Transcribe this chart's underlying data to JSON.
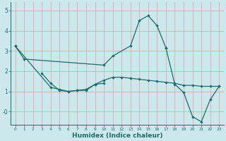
{
  "xlabel": "Humidex (Indice chaleur)",
  "background_color": "#cde8ec",
  "grid_color": "#d9a0a0",
  "line_color": "#1e6b6b",
  "xlim": [
    -0.5,
    23.5
  ],
  "ylim": [
    -0.65,
    5.4
  ],
  "line1_x": [
    0,
    1,
    10,
    11,
    13,
    14,
    15,
    16,
    17
  ],
  "line1_y": [
    3.25,
    2.6,
    2.3,
    2.75,
    3.25,
    4.5,
    4.75,
    4.25,
    3.15
  ],
  "line2_x": [
    3,
    4,
    5,
    6,
    7,
    8,
    9,
    10
  ],
  "line2_y": [
    1.9,
    1.4,
    1.05,
    1.0,
    1.05,
    1.05,
    1.35,
    1.4
  ],
  "line3_x": [
    0,
    4,
    5,
    6,
    7,
    8,
    9,
    10,
    11,
    12,
    13,
    14,
    15,
    16,
    17,
    18,
    19,
    20,
    21,
    22,
    23
  ],
  "line3_y": [
    3.25,
    1.2,
    1.1,
    1.0,
    1.05,
    1.1,
    1.35,
    1.55,
    1.7,
    1.7,
    1.65,
    1.6,
    1.55,
    1.5,
    1.45,
    1.4,
    1.3,
    1.3,
    1.25,
    1.25,
    1.25
  ],
  "line4_x": [
    17,
    18,
    19,
    20,
    21,
    22,
    23
  ],
  "line4_y": [
    3.15,
    1.35,
    0.95,
    -0.25,
    -0.5,
    0.6,
    1.25
  ],
  "yticks": [
    0,
    1,
    2,
    3,
    4,
    5
  ],
  "ytick_labels": [
    "-0",
    "1",
    "2",
    "3",
    "4",
    "5"
  ]
}
